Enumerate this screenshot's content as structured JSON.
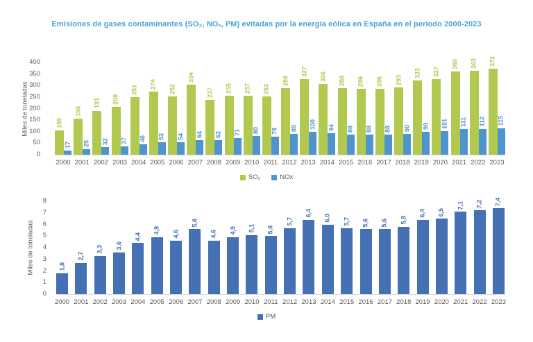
{
  "title": "Emisiones de gases contaminantes (SO₂, NOₓ, PM) evitadas por la energía eólica en España en el periodo 2000-2023",
  "colors": {
    "title": "#4aa3d9",
    "axis_text": "#595959",
    "baseline": "#d9d9d9",
    "so2_green": "#b1c94e",
    "nox_blue": "#4e95cd",
    "pm_blue": "#4670b4"
  },
  "chart_data": [
    {
      "type": "bar",
      "title": "",
      "categories": [
        "2000",
        "2001",
        "2002",
        "2003",
        "2004",
        "2005",
        "2006",
        "2007",
        "2008",
        "2009",
        "2010",
        "2011",
        "2012",
        "2013",
        "2014",
        "2015",
        "2016",
        "2017",
        "2018",
        "2019",
        "2020",
        "2021",
        "2022",
        "2023"
      ],
      "series": [
        {
          "name": "SO₂",
          "color": "#b1c94e",
          "values": [
            105,
            155,
            191,
            208,
            251,
            274,
            252,
            304,
            237,
            255,
            257,
            253,
            289,
            327,
            306,
            288,
            286,
            286,
            293,
            323,
            327,
            360,
            363,
            372
          ],
          "labels": [
            "105",
            "155",
            "191",
            "208",
            "251",
            "274",
            "252",
            "304",
            "237",
            "255",
            "257",
            "253",
            "289",
            "327",
            "306",
            "288",
            "286",
            "286",
            "293",
            "323",
            "327",
            "360",
            "363",
            "372"
          ]
        },
        {
          "name": "NOx",
          "color": "#4e95cd",
          "values": [
            17,
            25,
            32,
            37,
            46,
            53,
            54,
            64,
            62,
            71,
            80,
            78,
            89,
            100,
            94,
            88,
            88,
            88,
            90,
            99,
            101,
            111,
            112,
            115
          ],
          "labels": [
            "17",
            "25",
            "32",
            "37",
            "46",
            "53",
            "54",
            "64",
            "62",
            "71",
            "80",
            "78",
            "89",
            "100",
            "94",
            "88",
            "88",
            "88",
            "90",
            "99",
            "101",
            "111",
            "112",
            "115"
          ]
        }
      ],
      "xlabel": "",
      "ylabel": "Miles de toneladas",
      "ylim": [
        0,
        400
      ],
      "yticks": [
        0,
        50,
        100,
        150,
        200,
        250,
        300,
        350,
        400
      ],
      "legend_position": "bottom",
      "grid": false
    },
    {
      "type": "bar",
      "title": "",
      "categories": [
        "2000",
        "2001",
        "2002",
        "2003",
        "2004",
        "2005",
        "2006",
        "2007",
        "2008",
        "2009",
        "2010",
        "2011",
        "2012",
        "2013",
        "2014",
        "2015",
        "2016",
        "2017",
        "2018",
        "2019",
        "2020",
        "2021",
        "2022",
        "2023"
      ],
      "series": [
        {
          "name": "PM",
          "color": "#4670b4",
          "values": [
            1.8,
            2.7,
            3.3,
            3.6,
            4.4,
            4.9,
            4.6,
            5.6,
            4.6,
            4.9,
            5.1,
            5.0,
            5.7,
            6.4,
            6.0,
            5.7,
            5.6,
            5.6,
            5.8,
            6.4,
            6.5,
            7.1,
            7.2,
            7.4
          ],
          "labels": [
            "1,8",
            "2,7",
            "3,3",
            "3,6",
            "4,4",
            "4,9",
            "4,6",
            "5,6",
            "4,6",
            "4,9",
            "5,1",
            "5,0",
            "5,7",
            "6,4",
            "6,0",
            "5,7",
            "5,6",
            "5,6",
            "5,8",
            "6,4",
            "6,5",
            "7,1",
            "7,2",
            "7,4"
          ]
        }
      ],
      "xlabel": "",
      "ylabel": "Miles de toneladas",
      "ylim": [
        0,
        8
      ],
      "yticks": [
        0,
        1,
        2,
        3,
        4,
        5,
        6,
        7,
        8
      ],
      "legend_position": "bottom",
      "grid": false
    }
  ]
}
